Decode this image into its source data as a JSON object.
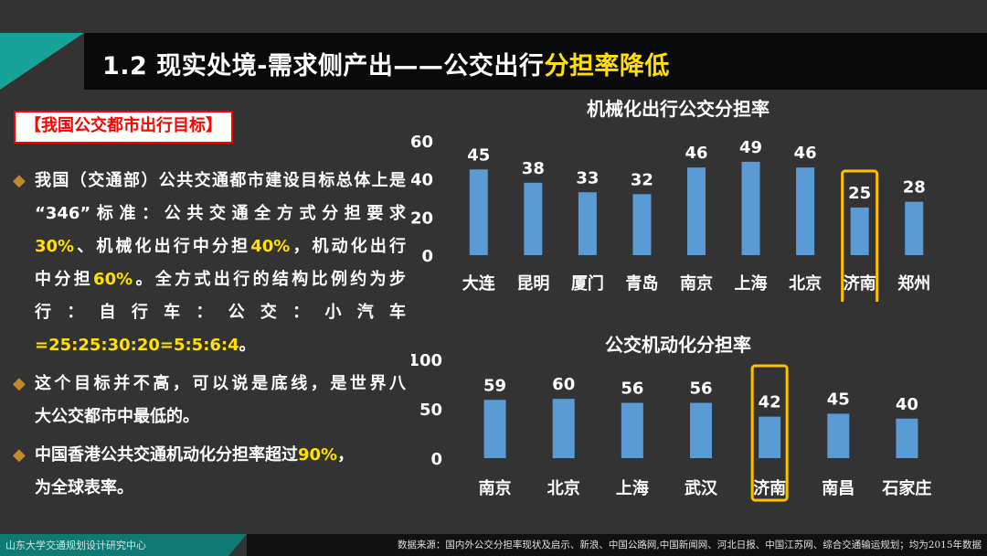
{
  "title": {
    "prefix": "1.2 现实处境-需求侧产出——公交出行",
    "highlight": "分担率降低"
  },
  "target_label": "【我国公交都市出行目标】",
  "bullets": {
    "b1_l1": "我国（交通部）公共交通都市建设目标总体上是",
    "b1_l2": "“346”标准：公共交通全方式分担要求",
    "b1_l3a": "30%",
    "b1_l3b": "、机械化出行中分担",
    "b1_l3c": "40%",
    "b1_l3d": "，机动化出行",
    "b1_l4a": "中分担",
    "b1_l4b": "60%",
    "b1_l4c": "。全方式出行的结构比例约为步",
    "b1_l5": "行：自行车：公交：小汽车",
    "b1_l6a": "=25:25:30:20=5:5:6:4",
    "b1_l6b": "。",
    "b2_l1": " 这个目标并不高，可以说是底线，是世界八",
    "b2_l2": "大公交都市中最低的。",
    "b3_l1a": " 中国香港公共交通机动化分担率超过",
    "b3_l1b": "90%",
    "b3_l1c": "，",
    "b3_l2": "为全球表率。"
  },
  "bullet_symbol": "◆",
  "footer": {
    "left": "山东大学交通规划设计研究中心",
    "right": "数据来源：国内外公交分担率现状及启示、新浪、中国公路网,中国新闻网、河北日报、中国江苏网、综合交通输运规划；均为2015年数据"
  },
  "chart_data": [
    {
      "type": "bar",
      "title": "机械化出行公交分担率",
      "categories": [
        "大连",
        "昆明",
        "厦门",
        "青岛",
        "南京",
        "上海",
        "北京",
        "济南",
        "郑州"
      ],
      "values": [
        45,
        38,
        33,
        32,
        46,
        49,
        46,
        25,
        28
      ],
      "yticks": [
        0,
        20,
        40,
        60
      ],
      "ylim": [
        0,
        60
      ],
      "highlight": "济南",
      "bar_color": "#5b9bd5",
      "highlight_color": "#ffc000"
    },
    {
      "type": "bar",
      "title": "公交机动化分担率",
      "categories": [
        "南京",
        "北京",
        "上海",
        "武汉",
        "济南",
        "南昌",
        "石家庄"
      ],
      "values": [
        59,
        60,
        56,
        56,
        42,
        45,
        40
      ],
      "yticks": [
        0,
        50,
        100
      ],
      "ylim": [
        0,
        100
      ],
      "highlight": "济南",
      "bar_color": "#5b9bd5",
      "highlight_color": "#ffc000"
    }
  ]
}
